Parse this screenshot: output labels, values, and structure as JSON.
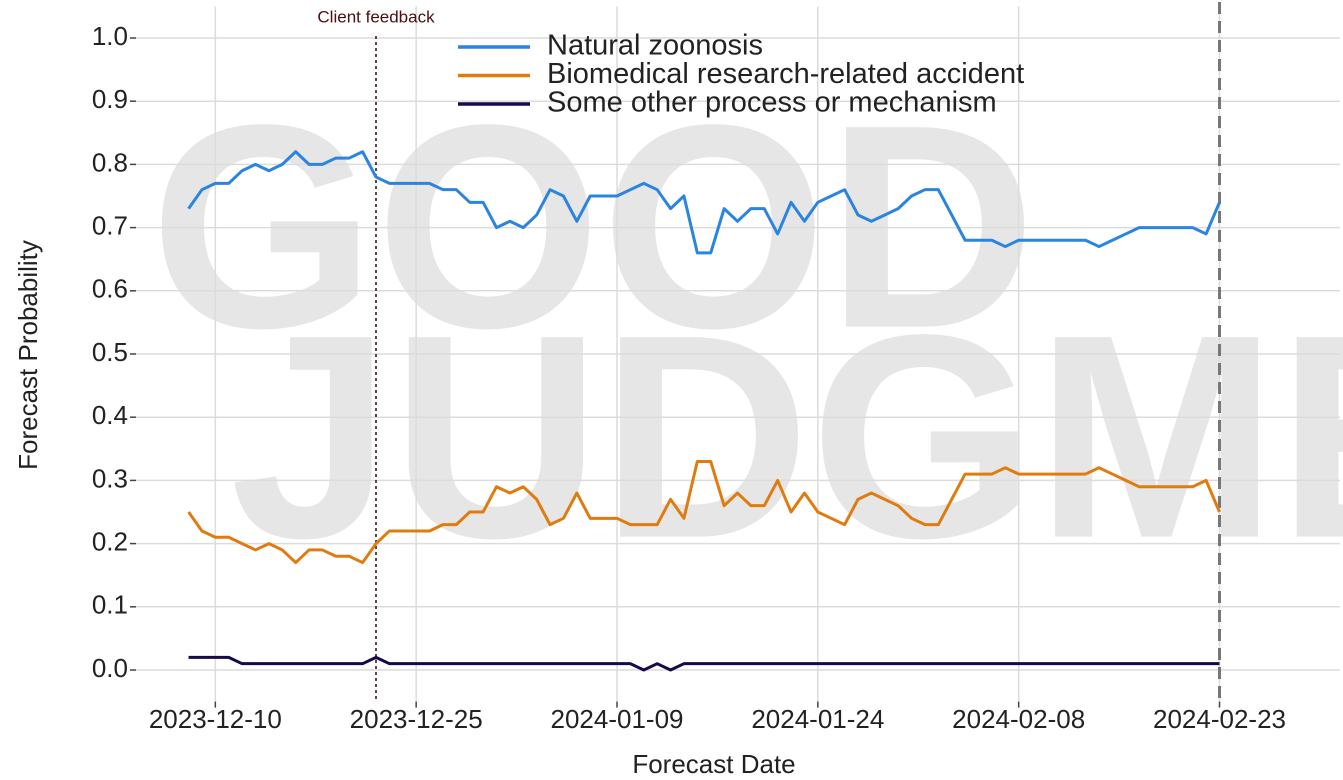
{
  "chart_data": {
    "type": "line",
    "x_label": "Forecast Date",
    "y_label": "Forecast Probability",
    "watermark": [
      "GOOD",
      "JUDGMENT"
    ],
    "x": [
      "2023-12-08",
      "2023-12-09",
      "2023-12-10",
      "2023-12-11",
      "2023-12-12",
      "2023-12-13",
      "2023-12-14",
      "2023-12-15",
      "2023-12-16",
      "2023-12-17",
      "2023-12-18",
      "2023-12-19",
      "2023-12-20",
      "2023-12-21",
      "2023-12-22",
      "2023-12-23",
      "2023-12-24",
      "2023-12-25",
      "2023-12-26",
      "2023-12-27",
      "2023-12-28",
      "2023-12-29",
      "2023-12-30",
      "2023-12-31",
      "2024-01-01",
      "2024-01-02",
      "2024-01-03",
      "2024-01-04",
      "2024-01-05",
      "2024-01-06",
      "2024-01-07",
      "2024-01-08",
      "2024-01-09",
      "2024-01-10",
      "2024-01-11",
      "2024-01-12",
      "2024-01-13",
      "2024-01-14",
      "2024-01-15",
      "2024-01-16",
      "2024-01-17",
      "2024-01-18",
      "2024-01-19",
      "2024-01-20",
      "2024-01-21",
      "2024-01-22",
      "2024-01-23",
      "2024-01-24",
      "2024-01-25",
      "2024-01-26",
      "2024-01-27",
      "2024-01-28",
      "2024-01-29",
      "2024-01-30",
      "2024-01-31",
      "2024-02-01",
      "2024-02-02",
      "2024-02-03",
      "2024-02-04",
      "2024-02-05",
      "2024-02-06",
      "2024-02-07",
      "2024-02-08",
      "2024-02-09",
      "2024-02-10",
      "2024-02-11",
      "2024-02-12",
      "2024-02-13",
      "2024-02-14",
      "2024-02-15",
      "2024-02-16",
      "2024-02-17",
      "2024-02-18",
      "2024-02-19",
      "2024-02-20",
      "2024-02-21",
      "2024-02-22",
      "2024-02-23"
    ],
    "series": [
      {
        "name": "Natural zoonosis",
        "color": "#2a84e0",
        "values": [
          0.73,
          0.76,
          0.77,
          0.77,
          0.79,
          0.8,
          0.79,
          0.8,
          0.82,
          0.8,
          0.8,
          0.81,
          0.81,
          0.82,
          0.78,
          0.77,
          0.77,
          0.77,
          0.77,
          0.76,
          0.76,
          0.74,
          0.74,
          0.7,
          0.71,
          0.7,
          0.72,
          0.76,
          0.75,
          0.71,
          0.75,
          0.75,
          0.75,
          0.76,
          0.77,
          0.76,
          0.73,
          0.75,
          0.66,
          0.66,
          0.73,
          0.71,
          0.73,
          0.73,
          0.69,
          0.74,
          0.71,
          0.74,
          0.75,
          0.76,
          0.72,
          0.71,
          0.72,
          0.73,
          0.75,
          0.76,
          0.76,
          0.72,
          0.68,
          0.68,
          0.68,
          0.67,
          0.68,
          0.68,
          0.68,
          0.68,
          0.68,
          0.68,
          0.67,
          0.68,
          0.69,
          0.7,
          0.7,
          0.7,
          0.7,
          0.7,
          0.69,
          0.74
        ]
      },
      {
        "name": "Biomedical research-related accident",
        "color": "#e07b10",
        "values": [
          0.25,
          0.22,
          0.21,
          0.21,
          0.2,
          0.19,
          0.2,
          0.19,
          0.17,
          0.19,
          0.19,
          0.18,
          0.18,
          0.17,
          0.2,
          0.22,
          0.22,
          0.22,
          0.22,
          0.23,
          0.23,
          0.25,
          0.25,
          0.29,
          0.28,
          0.29,
          0.27,
          0.23,
          0.24,
          0.28,
          0.24,
          0.24,
          0.24,
          0.23,
          0.23,
          0.23,
          0.27,
          0.24,
          0.33,
          0.33,
          0.26,
          0.28,
          0.26,
          0.26,
          0.3,
          0.25,
          0.28,
          0.25,
          0.24,
          0.23,
          0.27,
          0.28,
          0.27,
          0.26,
          0.24,
          0.23,
          0.23,
          0.27,
          0.31,
          0.31,
          0.31,
          0.32,
          0.31,
          0.31,
          0.31,
          0.31,
          0.31,
          0.31,
          0.32,
          0.31,
          0.3,
          0.29,
          0.29,
          0.29,
          0.29,
          0.29,
          0.3,
          0.25
        ]
      },
      {
        "name": "Some other process or mechanism",
        "color": "#160a4a",
        "values": [
          0.02,
          0.02,
          0.02,
          0.02,
          0.01,
          0.01,
          0.01,
          0.01,
          0.01,
          0.01,
          0.01,
          0.01,
          0.01,
          0.01,
          0.02,
          0.01,
          0.01,
          0.01,
          0.01,
          0.01,
          0.01,
          0.01,
          0.01,
          0.01,
          0.01,
          0.01,
          0.01,
          0.01,
          0.01,
          0.01,
          0.01,
          0.01,
          0.01,
          0.01,
          0.0,
          0.01,
          0.0,
          0.01,
          0.01,
          0.01,
          0.01,
          0.01,
          0.01,
          0.01,
          0.01,
          0.01,
          0.01,
          0.01,
          0.01,
          0.01,
          0.01,
          0.01,
          0.01,
          0.01,
          0.01,
          0.01,
          0.01,
          0.01,
          0.01,
          0.01,
          0.01,
          0.01,
          0.01,
          0.01,
          0.01,
          0.01,
          0.01,
          0.01,
          0.01,
          0.01,
          0.01,
          0.01,
          0.01,
          0.01,
          0.01,
          0.01,
          0.01,
          0.01
        ]
      }
    ],
    "xlim": [
      "2023-12-04",
      "2024-03-03"
    ],
    "xticks": [
      "2023-12-10",
      "2023-12-25",
      "2024-01-09",
      "2024-01-24",
      "2024-02-08",
      "2024-02-23"
    ],
    "ylim": [
      -0.05,
      1.05
    ],
    "yticks": [
      {
        "value": 0,
        "label": "0.0"
      },
      0.1,
      0.2,
      0.3,
      0.4,
      0.5,
      0.6,
      0.7,
      0.8,
      0.9,
      {
        "value": 1,
        "label": "1.0"
      }
    ],
    "grid": true,
    "legend": "top",
    "annotations": [
      {
        "label": "Client feedback",
        "x": "2023-12-22"
      }
    ],
    "reference_lines": [
      {
        "x": "2024-02-23"
      }
    ]
  }
}
